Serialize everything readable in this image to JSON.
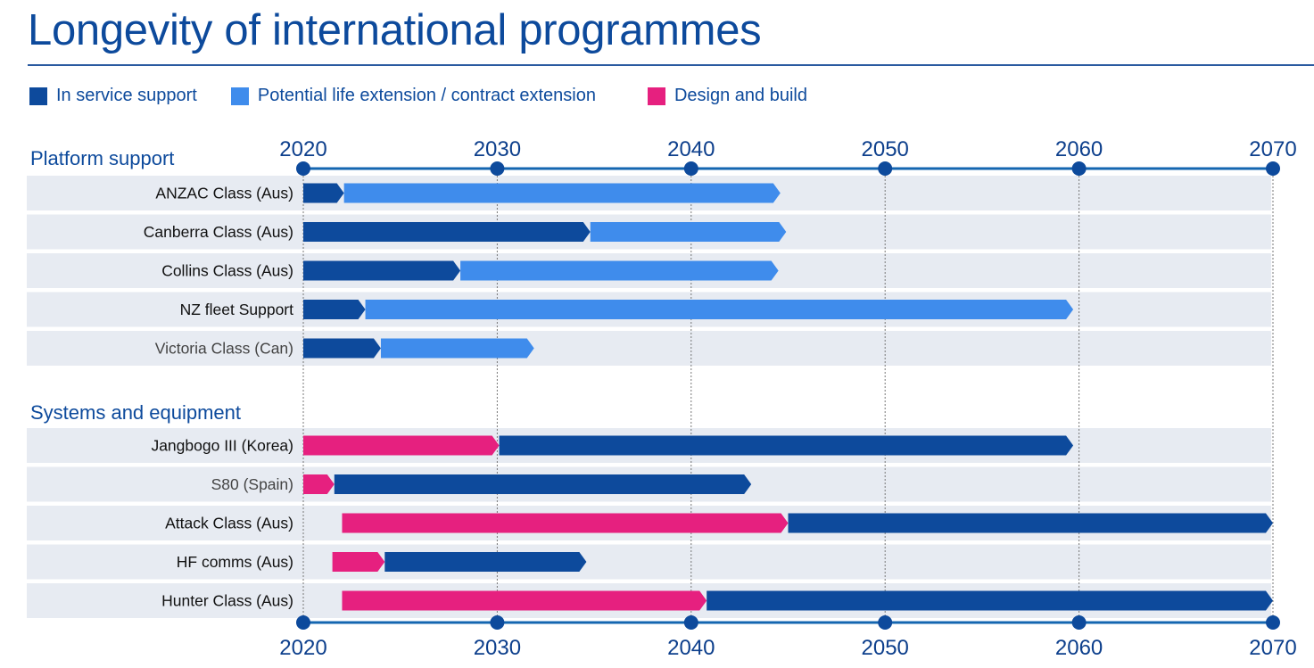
{
  "title": "Longevity of international programmes",
  "legend": [
    {
      "label": "In service support",
      "color": "#0d4a9c",
      "key": "in_service"
    },
    {
      "label": "Potential life extension / contract extension",
      "color": "#3f8cec",
      "key": "extension"
    },
    {
      "label": "Design and build",
      "color": "#e6207f",
      "key": "design"
    }
  ],
  "chart_data": {
    "type": "bar",
    "subtype": "horizontal-timeline-gantt",
    "title": "Longevity of international programmes",
    "xlabel": "",
    "ylabel": "",
    "xlim": [
      2020,
      2070
    ],
    "x_ticks": [
      2020,
      2030,
      2040,
      2050,
      2060,
      2070
    ],
    "grid": "vertical dotted at ticks",
    "legend_position": "top-left",
    "colors": {
      "in_service": "#0d4a9c",
      "extension": "#3f8cec",
      "design": "#e6207f"
    },
    "groups": [
      {
        "name": "Platform support",
        "rows": [
          {
            "label": "ANZAC Class (Aus)",
            "muted": false,
            "segments": [
              {
                "series": "in_service",
                "start": 2020,
                "end": 2022.1
              },
              {
                "series": "extension",
                "start": 2022.1,
                "end": 2044.6
              }
            ]
          },
          {
            "label": "Canberra Class (Aus)",
            "muted": false,
            "segments": [
              {
                "series": "in_service",
                "start": 2020,
                "end": 2034.8
              },
              {
                "series": "extension",
                "start": 2034.8,
                "end": 2044.9
              }
            ]
          },
          {
            "label": "Collins Class (Aus)",
            "muted": false,
            "segments": [
              {
                "series": "in_service",
                "start": 2020,
                "end": 2028.1
              },
              {
                "series": "extension",
                "start": 2028.1,
                "end": 2044.5
              }
            ]
          },
          {
            "label": "NZ fleet Support",
            "muted": false,
            "segments": [
              {
                "series": "in_service",
                "start": 2020,
                "end": 2023.2
              },
              {
                "series": "extension",
                "start": 2023.2,
                "end": 2059.7
              }
            ]
          },
          {
            "label": "Victoria Class (Can)",
            "muted": true,
            "segments": [
              {
                "series": "in_service",
                "start": 2020,
                "end": 2024.0
              },
              {
                "series": "extension",
                "start": 2024.0,
                "end": 2031.9
              }
            ]
          }
        ]
      },
      {
        "name": "Systems and equipment",
        "rows": [
          {
            "label": "Jangbogo III (Korea)",
            "muted": false,
            "segments": [
              {
                "series": "design",
                "start": 2020,
                "end": 2030.1
              },
              {
                "series": "in_service",
                "start": 2030.1,
                "end": 2059.7
              }
            ]
          },
          {
            "label": "S80 (Spain)",
            "muted": true,
            "segments": [
              {
                "series": "design",
                "start": 2020,
                "end": 2021.6
              },
              {
                "series": "in_service",
                "start": 2021.6,
                "end": 2043.1
              }
            ]
          },
          {
            "label": "Attack Class (Aus)",
            "muted": false,
            "segments": [
              {
                "series": "design",
                "start": 2022.0,
                "end": 2045.0
              },
              {
                "series": "in_service",
                "start": 2045.0,
                "end": 2070
              }
            ]
          },
          {
            "label": "HF comms (Aus)",
            "muted": false,
            "segments": [
              {
                "series": "design",
                "start": 2021.5,
                "end": 2024.2
              },
              {
                "series": "in_service",
                "start": 2024.2,
                "end": 2034.6
              }
            ]
          },
          {
            "label": "Hunter Class (Aus)",
            "muted": false,
            "segments": [
              {
                "series": "design",
                "start": 2022.0,
                "end": 2040.8
              },
              {
                "series": "in_service",
                "start": 2040.8,
                "end": 2070
              }
            ]
          }
        ]
      }
    ]
  }
}
